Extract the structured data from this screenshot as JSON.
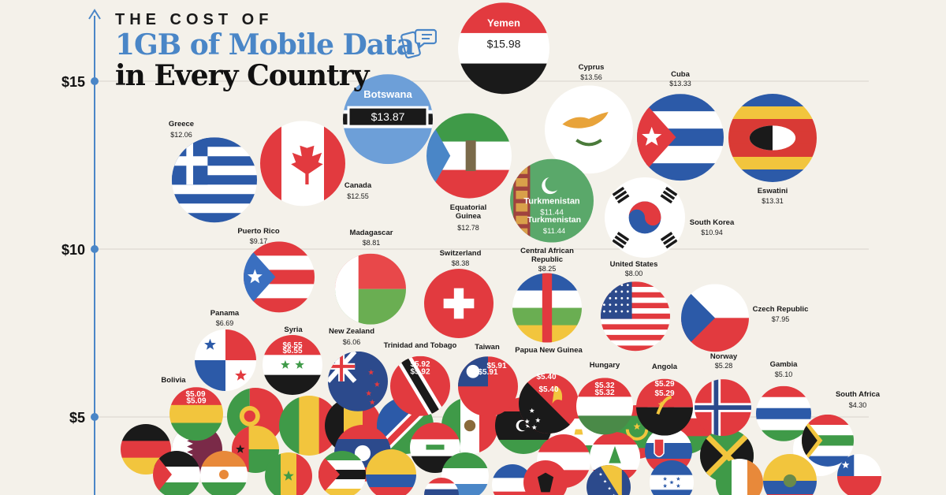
{
  "title": {
    "line1": "THE COST OF",
    "line2": "1GB of Mobile Data",
    "line3": "in Every Country"
  },
  "icons": {
    "title_icon": "phone-chat-icon"
  },
  "colors": {
    "background": "#f4f1ea",
    "axis": "#4a86c7",
    "grid": "#d8d4cc",
    "title_accent": "#4a86c7"
  },
  "chart_data": {
    "type": "scatter",
    "title": "THE COST OF 1GB of Mobile Data in Every Country",
    "ylabel": "",
    "ylim": [
      0,
      17.2
    ],
    "yticks": [
      {
        "value": 5,
        "label": "$5"
      },
      {
        "value": 10,
        "label": "$10"
      },
      {
        "value": 15,
        "label": "$15"
      }
    ],
    "grid": true,
    "labeled_points": [
      {
        "country": "Yemen",
        "value": 15.98,
        "label": "$15.98",
        "flag": "yemen",
        "label_style": "inside-box"
      },
      {
        "country": "Botswana",
        "value": 13.87,
        "label": "$13.87",
        "flag": "botswana",
        "label_style": "inside-box"
      },
      {
        "country": "Cyprus",
        "value": 13.56,
        "label": "$13.56",
        "flag": "cyprus",
        "label_style": "above"
      },
      {
        "country": "Cuba",
        "value": 13.33,
        "label": "$13.33",
        "flag": "cuba",
        "label_style": "above"
      },
      {
        "country": "Eswatini",
        "value": 13.31,
        "label": "$13.31",
        "flag": "eswatini",
        "label_style": "below"
      },
      {
        "country": "Equatorial Guinea",
        "value": 12.78,
        "label": "$12.78",
        "flag": "eqguinea",
        "label_style": "below"
      },
      {
        "country": "Canada",
        "value": 12.55,
        "label": "$12.55",
        "flag": "canada",
        "label_style": "below-right"
      },
      {
        "country": "Greece",
        "value": 12.06,
        "label": "$12.06",
        "flag": "greece",
        "label_style": "above"
      },
      {
        "country": "Turkmenistan",
        "value": 11.44,
        "label": "$11.44",
        "flag": "turkmenistan",
        "label_style": "inside"
      },
      {
        "country": "South Korea",
        "value": 10.94,
        "label": "$10.94",
        "flag": "southkorea",
        "label_style": "right"
      },
      {
        "country": "Puerto Rico",
        "value": 9.17,
        "label": "$9.17",
        "flag": "puertorico",
        "label_style": "above"
      },
      {
        "country": "Madagascar",
        "value": 8.81,
        "label": "$8.81",
        "flag": "madagascar",
        "label_style": "above"
      },
      {
        "country": "Switzerland",
        "value": 8.38,
        "label": "$8.38",
        "flag": "switzerland",
        "label_style": "above"
      },
      {
        "country": "Central African Republic",
        "value": 8.25,
        "label": "$8.25",
        "flag": "car",
        "label_style": "above"
      },
      {
        "country": "United States",
        "value": 8.0,
        "label": "$8.00",
        "flag": "usa",
        "label_style": "above"
      },
      {
        "country": "Czech Republic",
        "value": 7.95,
        "label": "$7.95",
        "flag": "czech",
        "label_style": "right"
      },
      {
        "country": "Panama",
        "value": 6.69,
        "label": "$6.69",
        "flag": "panama",
        "label_style": "above"
      },
      {
        "country": "Syria",
        "value": 6.55,
        "label": "$6.55",
        "flag": "syria",
        "label_style": "inside"
      },
      {
        "country": "New Zealand",
        "value": 6.06,
        "label": "$6.06",
        "flag": "newzealand",
        "label_style": "above"
      },
      {
        "country": "Trinidad and Tobago",
        "value": 5.92,
        "label": "$5.92",
        "flag": "trinidad",
        "label_style": "inside"
      },
      {
        "country": "Taiwan",
        "value": 5.91,
        "label": "$5.91",
        "flag": "taiwan",
        "label_style": "inside"
      },
      {
        "country": "Papua New Guinea",
        "value": 5.4,
        "label": "$5.40",
        "flag": "png",
        "label_style": "inside"
      },
      {
        "country": "Hungary",
        "value": 5.32,
        "label": "$5.32",
        "flag": "hungary",
        "label_style": "inside"
      },
      {
        "country": "Angola",
        "value": 5.29,
        "label": "$5.29",
        "flag": "angola",
        "label_style": "inside"
      },
      {
        "country": "Norway",
        "value": 5.28,
        "label": "$5.28",
        "flag": "norway",
        "label_style": "above"
      },
      {
        "country": "Gambia",
        "value": 5.1,
        "label": "$5.10",
        "flag": "gambia",
        "label_style": "above"
      },
      {
        "country": "Bolivia",
        "value": 5.09,
        "label": "$5.09",
        "flag": "bolivia",
        "label_style": "inside"
      },
      {
        "country": "South Africa",
        "value": 4.3,
        "label": "$4.30",
        "flag": "southafrica",
        "label_style": "above"
      }
    ],
    "unlabeled_flags": [
      "portugal",
      "mali",
      "belgium",
      "namibia",
      "mexico",
      "libya",
      "tajikistan",
      "mauritania",
      "oman",
      "germany",
      "qatar",
      "guineabissau",
      "laos",
      "iraq",
      "austria",
      "lebanon",
      "slovakia",
      "jamaica",
      "japan",
      "chile",
      "palestine",
      "niger",
      "senegal",
      "mozambique",
      "colombia",
      "sierraleone",
      "albania",
      "bosnia",
      "honduras",
      "ireland",
      "ecuador",
      "thailand",
      "unknown"
    ]
  }
}
